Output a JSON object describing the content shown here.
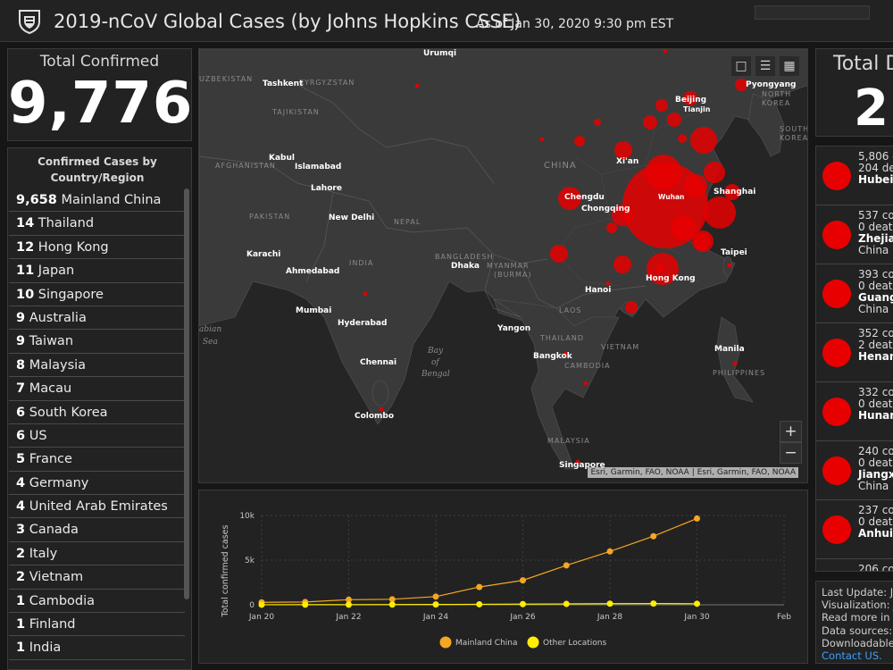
{
  "header": {
    "title": "2019-nCoV Global Cases (by Johns Hopkins CSSE)",
    "as_of": "As of Jan 30, 2020 9:30 pm EST",
    "logo_icon": "university-shield-icon"
  },
  "total_confirmed": {
    "label": "Total Confirmed",
    "value": "9,776"
  },
  "country_list": {
    "header_line1": "Confirmed Cases by",
    "header_line2": "Country/Region",
    "items": [
      {
        "count": "9,658",
        "name": "Mainland China"
      },
      {
        "count": "14",
        "name": "Thailand"
      },
      {
        "count": "12",
        "name": "Hong Kong"
      },
      {
        "count": "11",
        "name": "Japan"
      },
      {
        "count": "10",
        "name": "Singapore"
      },
      {
        "count": "9",
        "name": "Australia"
      },
      {
        "count": "9",
        "name": "Taiwan"
      },
      {
        "count": "8",
        "name": "Malaysia"
      },
      {
        "count": "7",
        "name": "Macau"
      },
      {
        "count": "6",
        "name": "South Korea"
      },
      {
        "count": "6",
        "name": "US"
      },
      {
        "count": "5",
        "name": "France"
      },
      {
        "count": "4",
        "name": "Germany"
      },
      {
        "count": "4",
        "name": "United Arab Emirates"
      },
      {
        "count": "3",
        "name": "Canada"
      },
      {
        "count": "2",
        "name": "Italy"
      },
      {
        "count": "2",
        "name": "Vietnam"
      },
      {
        "count": "1",
        "name": "Cambodia"
      },
      {
        "count": "1",
        "name": "Finland"
      },
      {
        "count": "1",
        "name": "India"
      }
    ]
  },
  "map": {
    "attribution": "Esri, Garmin, FAO, NOAA | Esri, Garmin, FAO, NOAA",
    "zoom_in": "+",
    "zoom_out": "−",
    "tools": [
      "bookmark-icon",
      "list-icon",
      "qr-code-icon"
    ],
    "country_labels": [
      "UZBEKISTAN",
      "KYRGYZSTAN",
      "TAJIKISTAN",
      "AFGHANISTAN",
      "PAKISTAN",
      "NEPAL",
      "INDIA",
      "BANGLADESH",
      "MYANMAR",
      "(BURMA)",
      "CHINA",
      "LAOS",
      "THAILAND",
      "VIETNAM",
      "CAMBODIA",
      "MALAYSIA",
      "PHILIPPINES",
      "NORTH",
      "KOREA",
      "SOUTH",
      "KOREA"
    ],
    "city_labels": [
      "Urumqi",
      "Tashkent",
      "Kabul",
      "Islamabad",
      "Lahore",
      "New Delhi",
      "Karachi",
      "Ahmedabad",
      "Mumbai",
      "Hyderabad",
      "Chennai",
      "Colombo",
      "Dhaka",
      "Yangon",
      "Bangkok",
      "Hanoi",
      "Hong Kong",
      "Taipei",
      "Manila",
      "Singapore",
      "Chengdu",
      "Chongqing",
      "Wuhan",
      "Shanghai",
      "Xi'an",
      "Beijing",
      "Tianjin",
      "Pyongyang"
    ],
    "water_labels": [
      "abian",
      "Sea",
      "Bay",
      "of",
      "Bengal"
    ]
  },
  "chart": {
    "color_mainland": "#f5a623",
    "color_other": "#ffee00"
  },
  "chart_data": {
    "type": "line",
    "ylabel": "Total confirmed cases",
    "xlabel": "",
    "x_ticks": [
      "Jan 20",
      "Jan 22",
      "Jan 24",
      "Jan 26",
      "Jan 28",
      "Jan 30",
      "Feb"
    ],
    "y_ticks": [
      "0",
      "5k",
      "10k"
    ],
    "ylim": [
      0,
      10000
    ],
    "xlim": [
      "Jan 20",
      "Feb 1"
    ],
    "x": [
      "Jan 20",
      "Jan 21",
      "Jan 22",
      "Jan 23",
      "Jan 24",
      "Jan 25",
      "Jan 26",
      "Jan 27",
      "Jan 28",
      "Jan 29",
      "Jan 30"
    ],
    "series": [
      {
        "name": "Mainland China",
        "values": [
          278,
          309,
          571,
          618,
          918,
          1990,
          2737,
          4409,
          5970,
          7678,
          9658
        ]
      },
      {
        "name": "Other Locations",
        "values": [
          4,
          9,
          12,
          22,
          36,
          55,
          74,
          96,
          125,
          141,
          118
        ]
      }
    ],
    "legend_position": "bottom",
    "grid": true
  },
  "total_deaths": {
    "label": "Total D",
    "value": "21"
  },
  "region_list": [
    {
      "line1": "5,806 c",
      "line2": "204 dea",
      "line3": "Hubei M",
      "line4": ""
    },
    {
      "line1": "537 con",
      "line2": "0 deaths",
      "line3": "Zhejiang",
      "line4": "China"
    },
    {
      "line1": "393 con",
      "line2": "0 deaths",
      "line3": "Guangd",
      "line4": "China"
    },
    {
      "line1": "352 con",
      "line2": "2 deaths",
      "line3": "Henan M",
      "line4": ""
    },
    {
      "line1": "332 con",
      "line2": "0 deaths",
      "line3": "Hunan M",
      "line4": ""
    },
    {
      "line1": "240 con",
      "line2": "0 deaths",
      "line3": "Jiangxi",
      "line4": "China"
    },
    {
      "line1": "237 con",
      "line2": "0 deaths",
      "line3": "Anhui M",
      "line4": ""
    },
    {
      "line1": "206 con",
      "line2": "0 deaths",
      "line3": "Chongq",
      "line4": "China"
    }
  ],
  "info": {
    "last_update": "Last Update: Ja",
    "visualization": "Visualization: ",
    "visualization_link": "J",
    "read_more": "Read more in th",
    "data_sources": "Data sources: ",
    "data_sources_link": "W",
    "downloadable": "Downloadable",
    "contact": "Contact US."
  }
}
